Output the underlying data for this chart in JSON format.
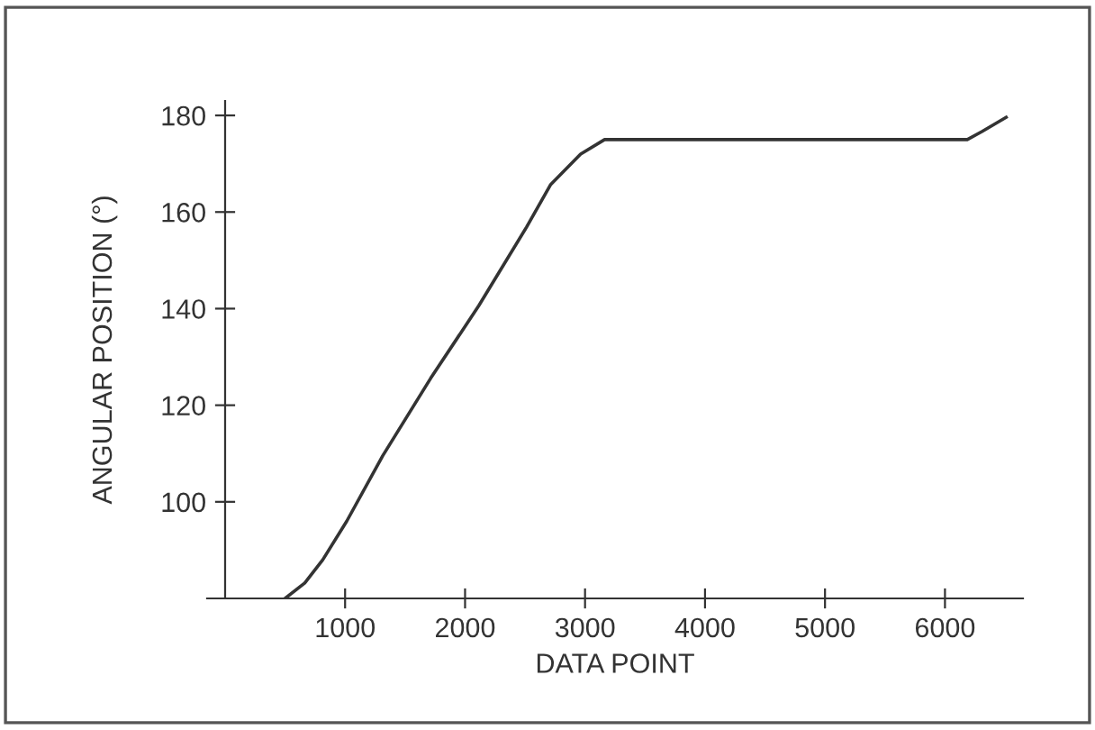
{
  "chart_data": {
    "type": "line",
    "xlabel": "DATA POINT",
    "ylabel": "ANGULAR POSITION (°)",
    "x": [
      500,
      664,
      814,
      1014,
      1313,
      1714,
      2114,
      2513,
      2714,
      2963,
      3163,
      6186,
      6311,
      6510
    ],
    "series": [
      {
        "color": "#333333",
        "values": [
          80,
          83.2,
          88,
          96,
          109.5,
          125.6,
          140.6,
          156.9,
          165.7,
          172,
          175,
          175,
          176.7,
          179.6
        ]
      }
    ],
    "xlim": [
      -150,
      6650
    ],
    "ylim": [
      80,
      183
    ],
    "xticks": [
      1000,
      2000,
      3000,
      4000,
      5000,
      6000
    ],
    "yticks": [
      100,
      120,
      140,
      160,
      180
    ],
    "grid": false,
    "legend": false,
    "marker": "none",
    "line_style": "solid"
  }
}
